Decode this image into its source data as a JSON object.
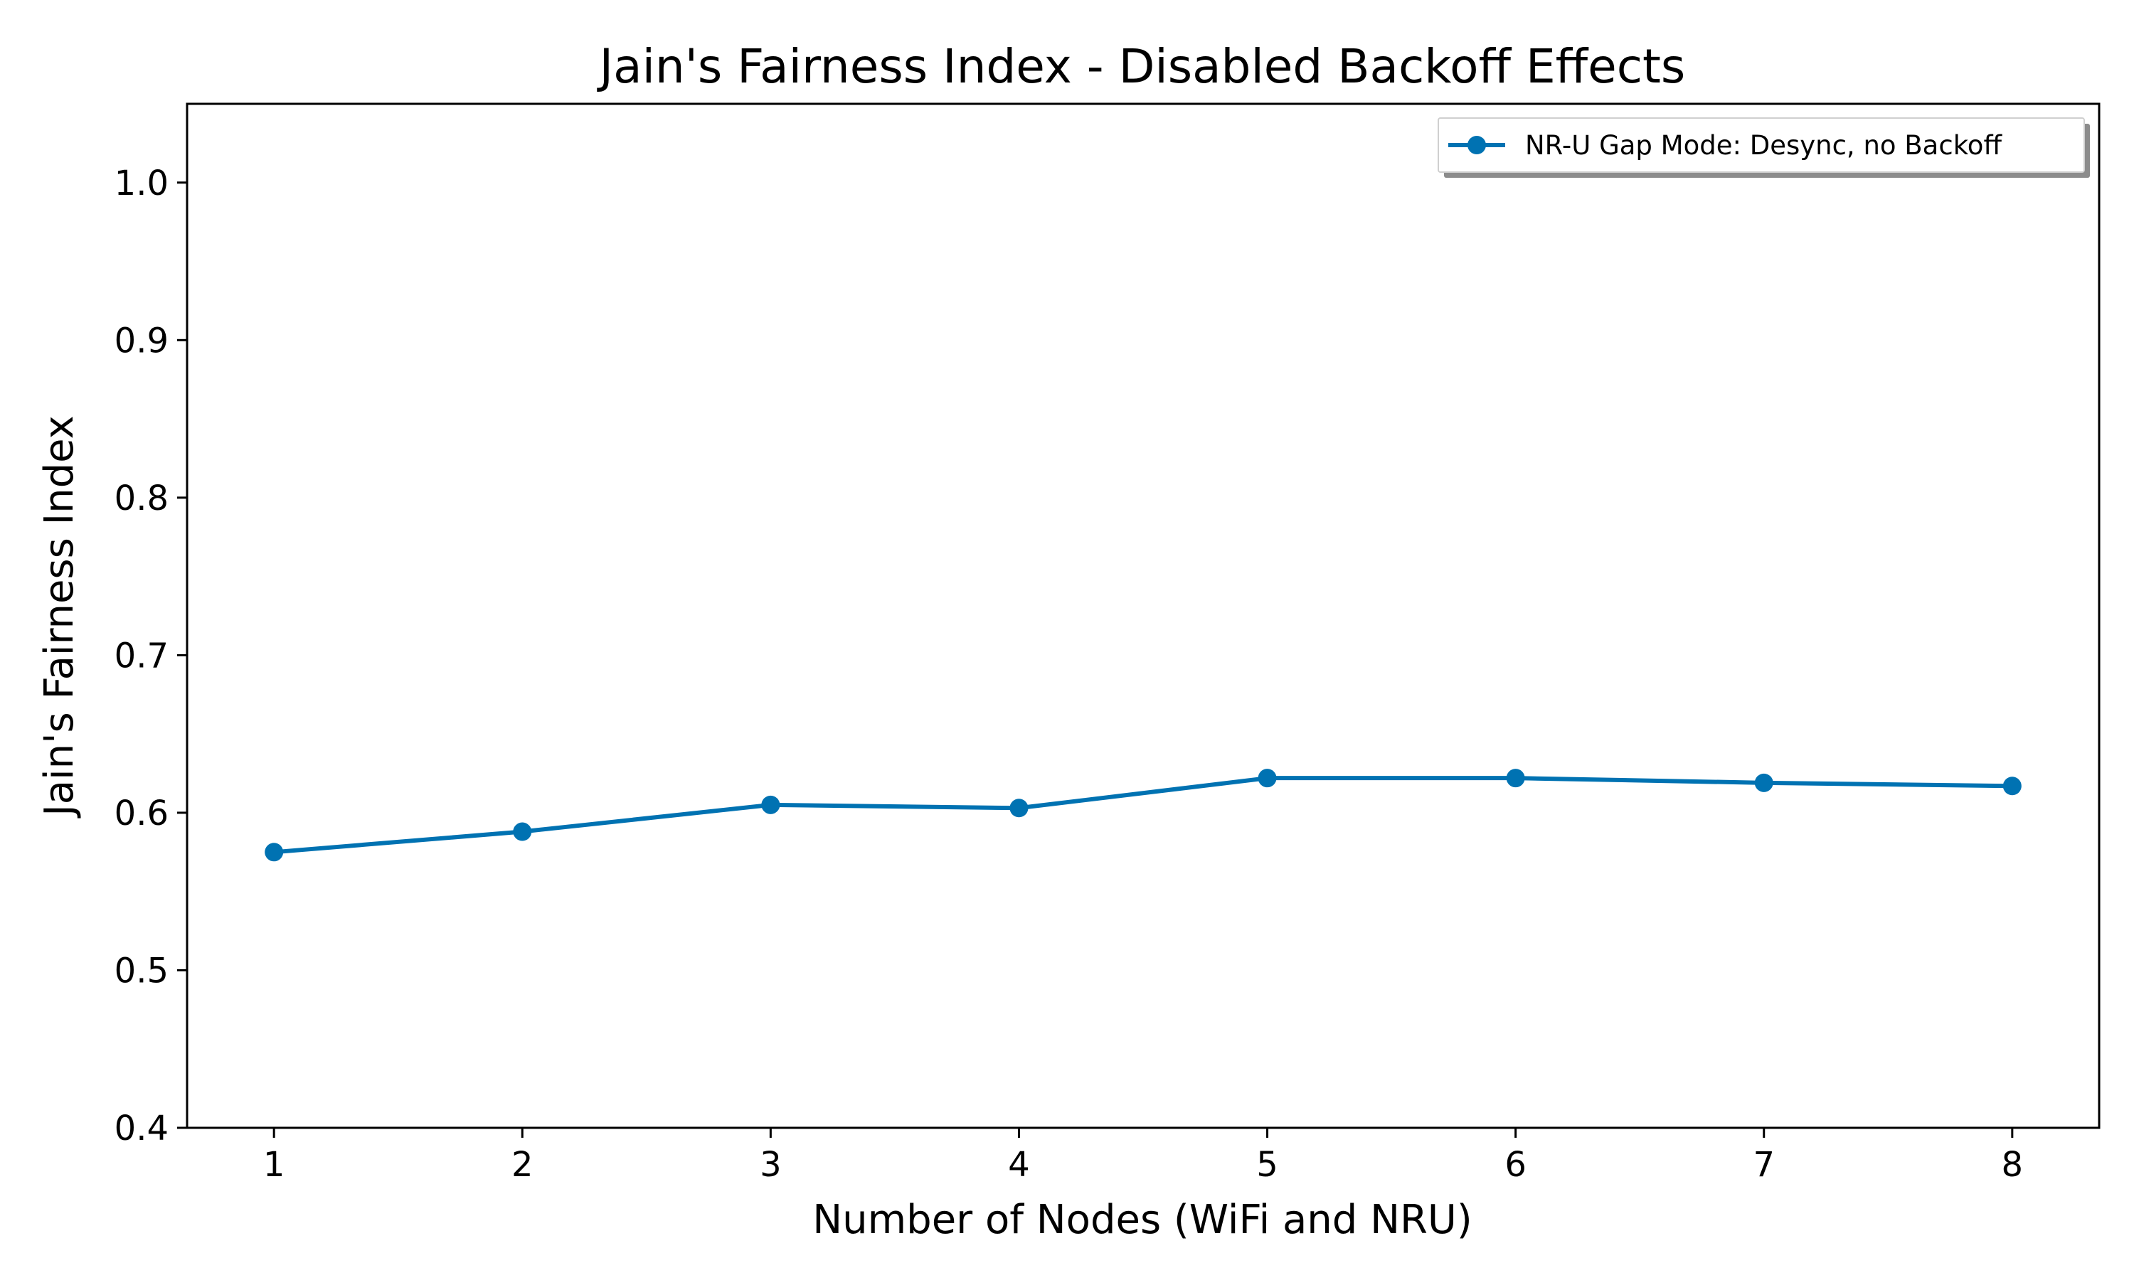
{
  "chart_data": {
    "type": "line",
    "title": "Jain's Fairness Index - Disabled Backoff Effects",
    "xlabel": "Number of Nodes (WiFi and NRU)",
    "ylabel": "Jain's Fairness Index",
    "x": [
      1,
      2,
      3,
      4,
      5,
      6,
      7,
      8
    ],
    "x_ticks": [
      "1",
      "2",
      "3",
      "4",
      "5",
      "6",
      "7",
      "8"
    ],
    "y_ticks": [
      "0.4",
      "0.5",
      "0.6",
      "0.7",
      "0.8",
      "0.9",
      "1.0"
    ],
    "xlim": [
      0.65,
      8.35
    ],
    "ylim": [
      0.4,
      1.05
    ],
    "grid": false,
    "legend_position": "top-right",
    "series": [
      {
        "name": "NR-U Gap Mode: Desync, no Backoff",
        "color": "#0072B2",
        "marker": "circle",
        "values": [
          0.575,
          0.588,
          0.605,
          0.603,
          0.622,
          0.622,
          0.619,
          0.617
        ]
      }
    ]
  }
}
